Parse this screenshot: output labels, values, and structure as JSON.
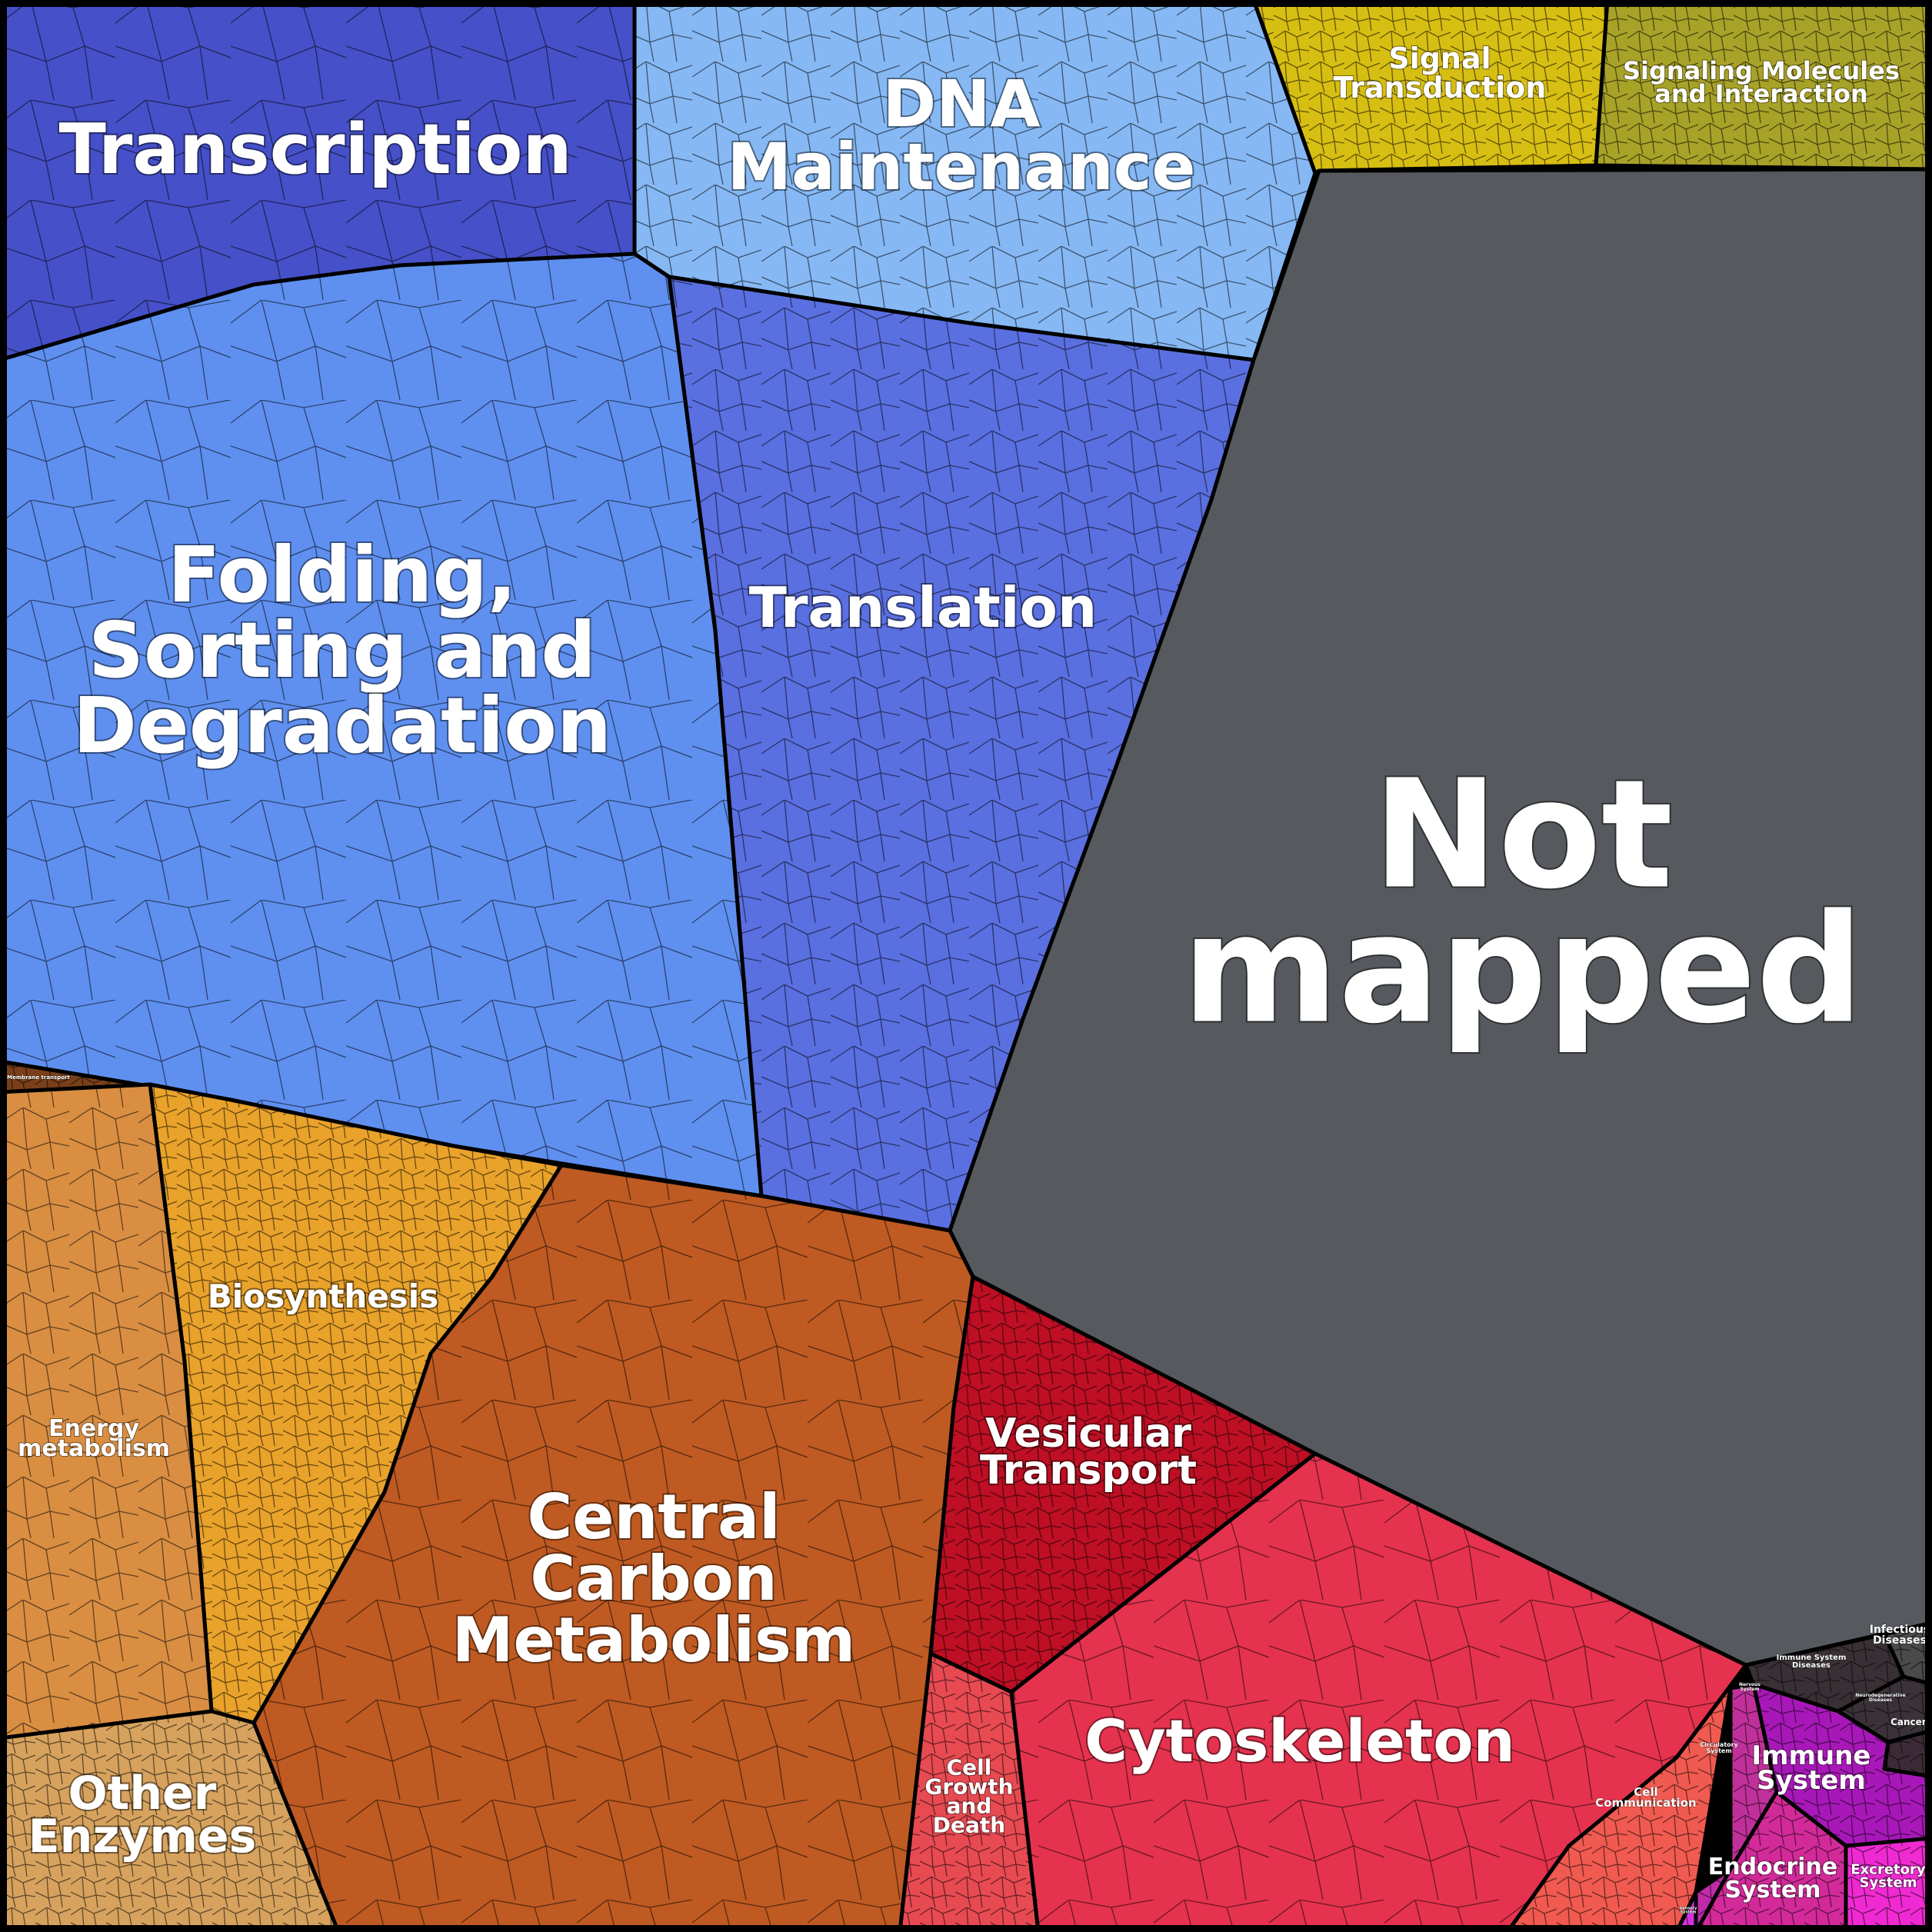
{
  "regions": [
    {
      "key": "transcription",
      "label": "Transcription",
      "color": "#4650c8"
    },
    {
      "key": "dna",
      "label": "DNA Maintenance",
      "color": "#86b8f4"
    },
    {
      "key": "signal",
      "label": "Signal Transduction",
      "color": "#d7be12"
    },
    {
      "key": "signaling_molecules",
      "label": "Signaling Molecules and Interaction",
      "color": "#a8a228"
    },
    {
      "key": "folding",
      "label": "Folding, Sorting and Degradation",
      "color": "#5f90f0"
    },
    {
      "key": "translation",
      "label": "Translation",
      "color": "#5a6fe0"
    },
    {
      "key": "not_mapped",
      "label": "Not mapped",
      "color": "#565a5e"
    },
    {
      "key": "membrane",
      "label": "Membrane transport",
      "color": "#7a3f1a"
    },
    {
      "key": "biosynthesis",
      "label": "Biosynthesis",
      "color": "#e9a22a"
    },
    {
      "key": "energy",
      "label": "Energy metabolism",
      "color": "#d98e42"
    },
    {
      "key": "central",
      "label": "Central Carbon Metabolism",
      "color": "#bf5a22"
    },
    {
      "key": "other_enzymes",
      "label": "Other Enzymes",
      "color": "#d6a25e"
    },
    {
      "key": "vesicular",
      "label": "Vesicular Transport",
      "color": "#be0f24"
    },
    {
      "key": "cytoskeleton",
      "label": "Cytoskeleton",
      "color": "#e5324e"
    },
    {
      "key": "cell_growth",
      "label": "Cell Growth and Death",
      "color": "#e84a52"
    },
    {
      "key": "cell_comm",
      "label": "Cell Communication",
      "color": "#f05a50"
    },
    {
      "key": "infectious",
      "label": "Infectious Diseases",
      "color": "#4a4a4a"
    },
    {
      "key": "immune_dis",
      "label": "Immune System Diseases",
      "color": "#383035"
    },
    {
      "key": "neuro",
      "label": "Neurodegenerative Diseases",
      "color": "#3a3238"
    },
    {
      "key": "cancers",
      "label": "Cancers",
      "color": "#3c2a36"
    },
    {
      "key": "immune",
      "label": "Immune System",
      "color": "#a818b8"
    },
    {
      "key": "endocrine",
      "label": "Endocrine System",
      "color": "#d32a9a"
    },
    {
      "key": "excretory",
      "label": "Excretory System",
      "color": "#f02ad2"
    },
    {
      "key": "circulatory",
      "label": "Circulatory System",
      "color": "#c0309a"
    },
    {
      "key": "nervous",
      "label": "Nervous System",
      "color": "#c02aa8"
    },
    {
      "key": "sensory",
      "label": "Sensory System",
      "color": "#d830e0"
    }
  ],
  "labels": {
    "transcription": [
      "Transcription"
    ],
    "dna": [
      "DNA",
      "Maintenance"
    ],
    "signal": [
      "Signal",
      "Transduction"
    ],
    "signaling_molecules": [
      "Signaling Molecules",
      "and Interaction"
    ],
    "folding": [
      "Folding,",
      "Sorting and",
      "Degradation"
    ],
    "translation": [
      "Translation"
    ],
    "not_mapped": [
      "Not",
      "mapped"
    ],
    "membrane": [
      "Membrane transport"
    ],
    "biosynthesis": [
      "Biosynthesis"
    ],
    "energy": [
      "Energy",
      "metabolism"
    ],
    "central": [
      "Central",
      "Carbon",
      "Metabolism"
    ],
    "other_enzymes": [
      "Other",
      "Enzymes"
    ],
    "vesicular": [
      "Vesicular",
      "Transport"
    ],
    "cytoskeleton": [
      "Cytoskeleton"
    ],
    "cell_growth": [
      "Cell",
      "Growth",
      "and",
      "Death"
    ],
    "cell_comm": [
      "Cell",
      "Communication"
    ],
    "infectious": [
      "Infectious",
      "Diseases"
    ],
    "immune_dis": [
      "Immune System",
      "Diseases"
    ],
    "neuro": [
      "Neurodegenerative",
      "Diseases"
    ],
    "cancers": [
      "Cancers"
    ],
    "immune": [
      "Immune",
      "System"
    ],
    "endocrine": [
      "Endocrine",
      "System"
    ],
    "excretory": [
      "Excretory",
      "System"
    ],
    "circulatory": [
      "Circulatory",
      "System"
    ],
    "nervous": [
      "Nervous",
      "System"
    ],
    "sensory": [
      "Sensory",
      "System"
    ]
  }
}
